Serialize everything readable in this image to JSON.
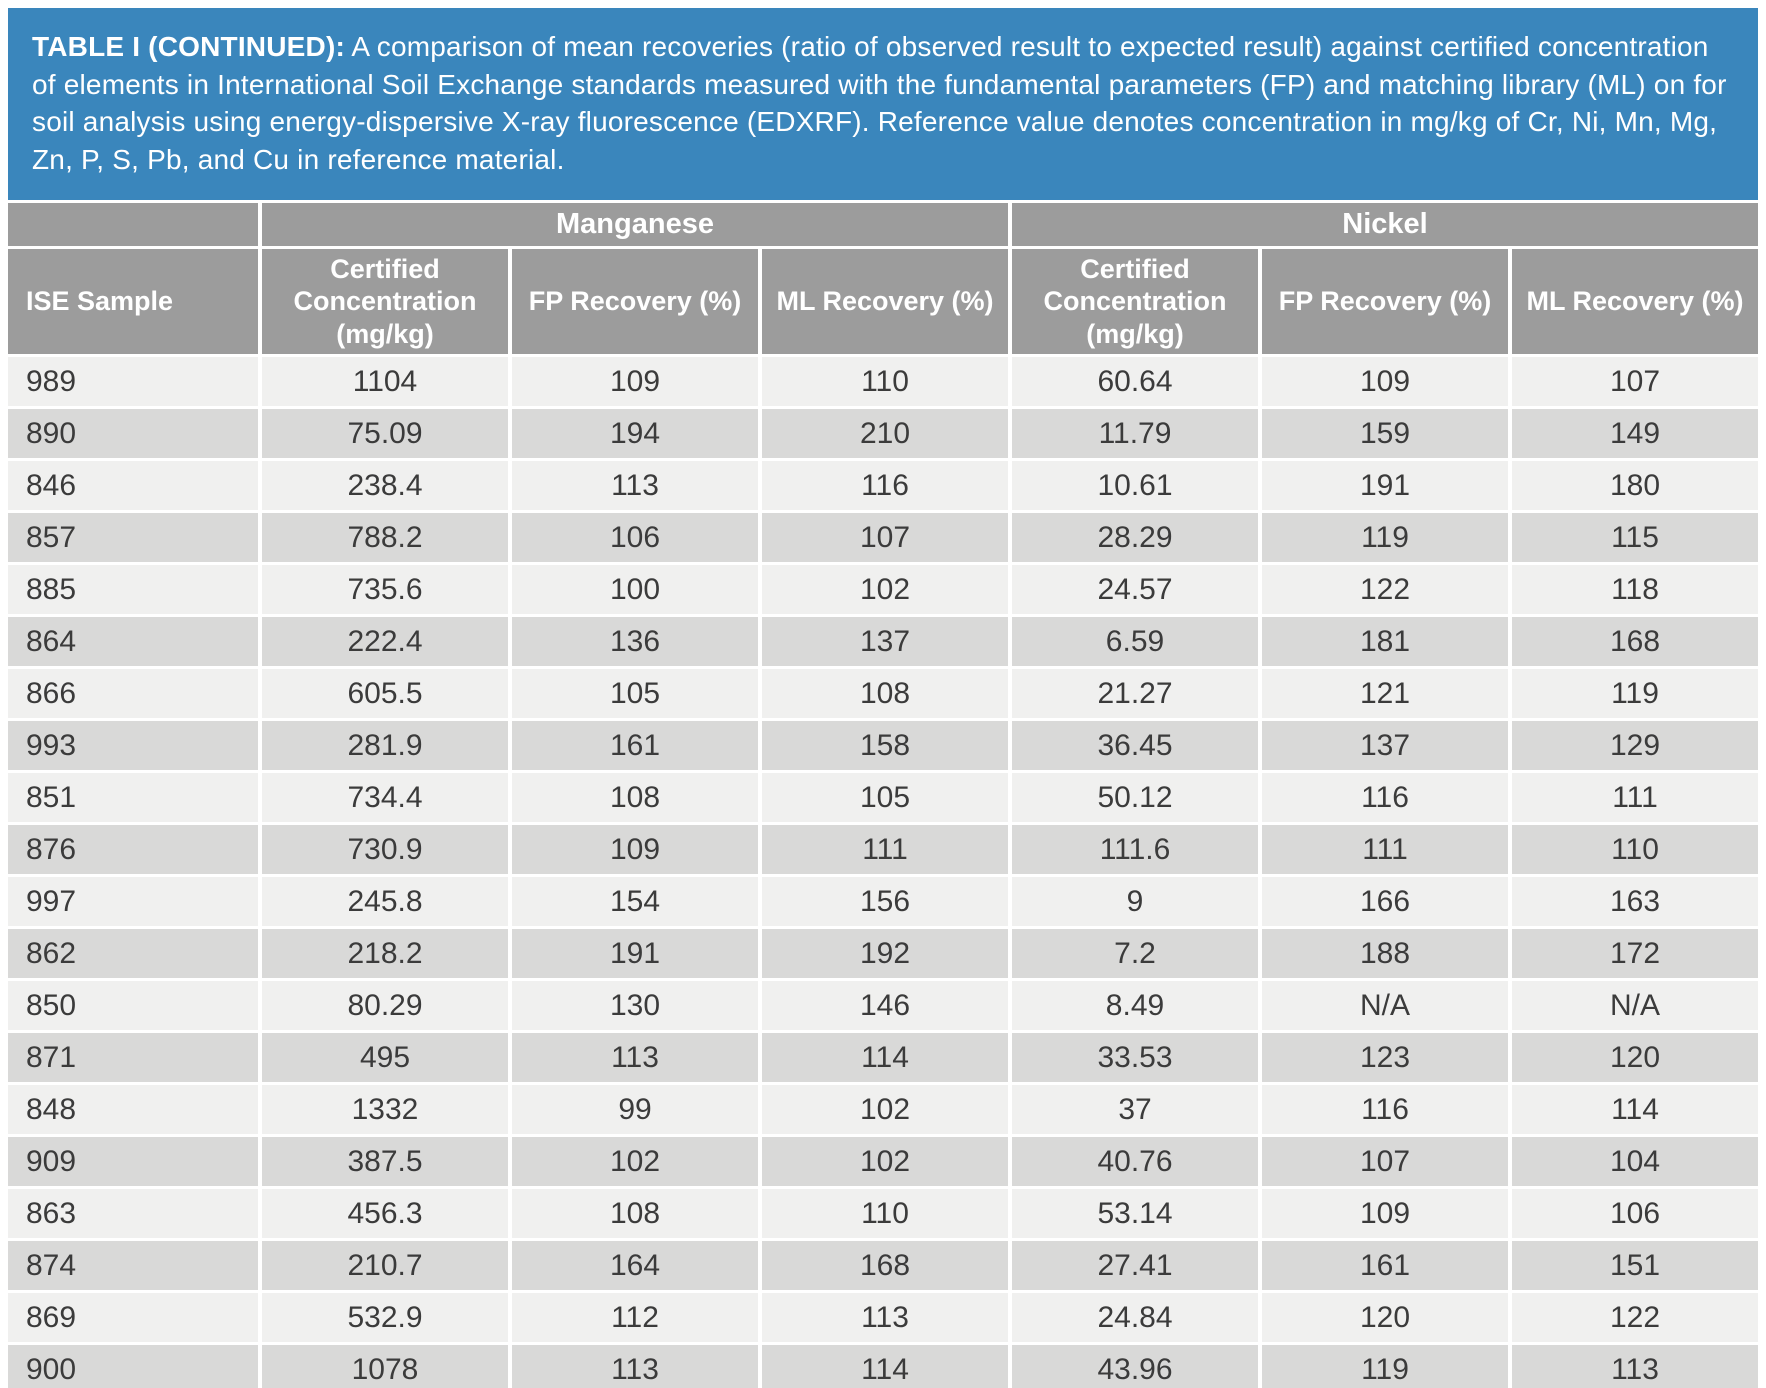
{
  "caption": {
    "lead": "TABLE I (CONTINUED):",
    "body": " A comparison of mean recoveries (ratio of observed result to expected result) against certified concentration of elements in International Soil Exchange standards measured with the fundamental parameters (FP) and matching library (ML) on for soil analysis using energy-dispersive X-ray fluorescence (EDXRF).  Reference value denotes concentration in mg/kg of Cr, Ni, Mn, Mg, Zn, P, S, Pb, and Cu in reference material."
  },
  "table": {
    "group_headers": {
      "spacer": "",
      "manganese": "Manganese",
      "nickel": "Nickel"
    },
    "column_headers": {
      "sample": "ISE Sample",
      "mn_certified": "Certified Concentration (mg/kg)",
      "mn_fp": "FP Recovery (%)",
      "mn_ml": "ML Recovery (%)",
      "ni_certified": "Certified Concentration (mg/kg)",
      "ni_fp": "FP Recovery (%)",
      "ni_ml": "ML Recovery (%)"
    },
    "rows": [
      [
        "989",
        "1104",
        "109",
        "110",
        "60.64",
        "109",
        "107"
      ],
      [
        "890",
        "75.09",
        "194",
        "210",
        "11.79",
        "159",
        "149"
      ],
      [
        "846",
        "238.4",
        "113",
        "116",
        "10.61",
        "191",
        "180"
      ],
      [
        "857",
        "788.2",
        "106",
        "107",
        "28.29",
        "119",
        "115"
      ],
      [
        "885",
        "735.6",
        "100",
        "102",
        "24.57",
        "122",
        "118"
      ],
      [
        "864",
        "222.4",
        "136",
        "137",
        "6.59",
        "181",
        "168"
      ],
      [
        "866",
        "605.5",
        "105",
        "108",
        "21.27",
        "121",
        "119"
      ],
      [
        "993",
        "281.9",
        "161",
        "158",
        "36.45",
        "137",
        "129"
      ],
      [
        "851",
        "734.4",
        "108",
        "105",
        "50.12",
        "116",
        "111"
      ],
      [
        "876",
        "730.9",
        "109",
        "111",
        "111.6",
        "111",
        "110"
      ],
      [
        "997",
        "245.8",
        "154",
        "156",
        "9",
        "166",
        "163"
      ],
      [
        "862",
        "218.2",
        "191",
        "192",
        "7.2",
        "188",
        "172"
      ],
      [
        "850",
        "80.29",
        "130",
        "146",
        "8.49",
        "N/A",
        "N/A"
      ],
      [
        "871",
        "495",
        "113",
        "114",
        "33.53",
        "123",
        "120"
      ],
      [
        "848",
        "1332",
        "99",
        "102",
        "37",
        "116",
        "114"
      ],
      [
        "909",
        "387.5",
        "102",
        "102",
        "40.76",
        "107",
        "104"
      ],
      [
        "863",
        "456.3",
        "108",
        "110",
        "53.14",
        "109",
        "106"
      ],
      [
        "874",
        "210.7",
        "164",
        "168",
        "27.41",
        "161",
        "151"
      ],
      [
        "869",
        "532.9",
        "112",
        "113",
        "24.84",
        "120",
        "122"
      ],
      [
        "900",
        "1078",
        "113",
        "114",
        "43.96",
        "119",
        "113"
      ]
    ]
  },
  "colors": {
    "caption_background": "#3A86BC",
    "header_background": "#9C9C9C",
    "row_light": "#F0F0EF",
    "row_dark": "#D9D9D8",
    "divider": "#FFFFFF",
    "body_text": "#3B3B3B",
    "bottom_bar_blue": "#3C7FB3"
  }
}
